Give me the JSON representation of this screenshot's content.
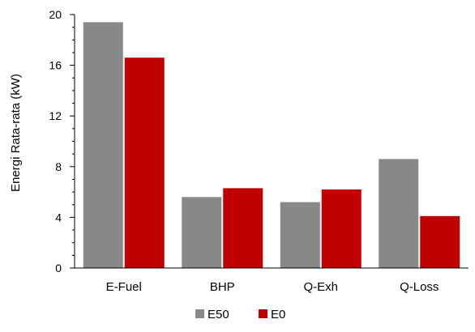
{
  "chart_data": {
    "type": "bar",
    "categories": [
      "E-Fuel",
      "BHP",
      "Q-Exh",
      "Q-Loss"
    ],
    "series": [
      {
        "name": "E50",
        "values": [
          19.4,
          5.6,
          5.2,
          8.6
        ],
        "color": "#888888"
      },
      {
        "name": "E0",
        "values": [
          16.6,
          6.3,
          6.2,
          4.1
        ],
        "color": "#c00000"
      }
    ],
    "ylabel": "Energi Rata-rata (kW)",
    "ylim": [
      0,
      20
    ],
    "yticks": [
      0,
      4,
      8,
      12,
      16,
      20
    ],
    "grid": false,
    "legend_position": "bottom-center"
  }
}
